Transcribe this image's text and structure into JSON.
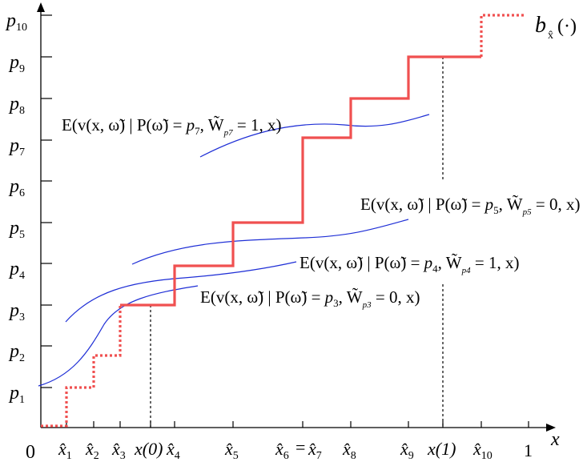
{
  "origin_label": "0",
  "x_axis_label": "x",
  "x_end_label": "1",
  "function_label": {
    "base": "b",
    "sub": "x̂",
    "args": "(·)"
  },
  "y_ticks": [
    {
      "base": "p",
      "sub": "1"
    },
    {
      "base": "p",
      "sub": "2"
    },
    {
      "base": "p",
      "sub": "3"
    },
    {
      "base": "p",
      "sub": "4"
    },
    {
      "base": "p",
      "sub": "5"
    },
    {
      "base": "p",
      "sub": "6"
    },
    {
      "base": "p",
      "sub": "7"
    },
    {
      "base": "p",
      "sub": "8"
    },
    {
      "base": "p",
      "sub": "9"
    },
    {
      "base": "p",
      "sub": "10"
    }
  ],
  "x_ticks": [
    {
      "base": "x̂",
      "sub": "1"
    },
    {
      "base": "x̂",
      "sub": "2"
    },
    {
      "base": "x̂",
      "sub": "3"
    },
    {
      "base": "x(0)",
      "sub": ""
    },
    {
      "base": "x̂",
      "sub": "4"
    },
    {
      "base": "x̂",
      "sub": "5"
    },
    {
      "base": "x̂",
      "sub": "6"
    },
    {
      "base": "x̂",
      "sub": "7"
    },
    {
      "base": "x̂",
      "sub": "8"
    },
    {
      "base": "x̂",
      "sub": "9"
    },
    {
      "base": "x(1)",
      "sub": ""
    },
    {
      "base": "x̂",
      "sub": "10"
    }
  ],
  "equals_between": "=",
  "curve_labels": [
    {
      "pre": "E(v(x, ω̃) | P(ω̃) = ",
      "p": "p",
      "psub": "7",
      "mid": ", W̃",
      "wsub": "p7",
      "post": " = 1, x)"
    },
    {
      "pre": "E(v(x, ω̃) | P(ω̃) = ",
      "p": "p",
      "psub": "5",
      "mid": ", W̃",
      "wsub": "p5",
      "post": " = 0, x)"
    },
    {
      "pre": "E(v(x, ω̃) | P(ω̃) = ",
      "p": "p",
      "psub": "4",
      "mid": ", W̃",
      "wsub": "p4",
      "post": " = 1, x)"
    },
    {
      "pre": "E(v(x, ω̃) | P(ω̃) = ",
      "p": "p",
      "psub": "3",
      "mid": ", W̃",
      "wsub": "p3",
      "post": " = 0, x)"
    }
  ],
  "colors": {
    "step": "#f05050",
    "curve": "#1f2fd6",
    "axis": "#000000"
  }
}
